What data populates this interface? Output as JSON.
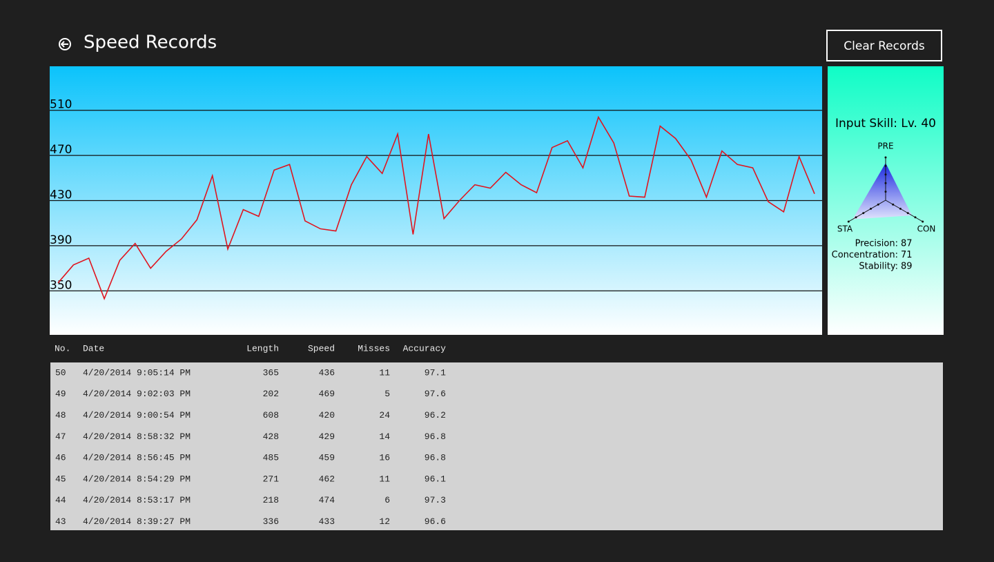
{
  "header": {
    "title": "Speed Records",
    "button": "Clear Records"
  },
  "chart_data": {
    "type": "line",
    "values": [
      357,
      373,
      379,
      343,
      377,
      392,
      370,
      385,
      396,
      413,
      452,
      387,
      422,
      416,
      457,
      462,
      412,
      405,
      403,
      444,
      469,
      454,
      489,
      400,
      489,
      414,
      430,
      444,
      441,
      455,
      444,
      437,
      477,
      483,
      459,
      504,
      481,
      434,
      433,
      496,
      485,
      466,
      433,
      474,
      462,
      459,
      429,
      420,
      469,
      436
    ],
    "color": "#e0141e",
    "ylim": [
      311,
      549
    ],
    "yticks": [
      350,
      390,
      430,
      470,
      510
    ],
    "grid": true
  },
  "skill": {
    "title": "Input Skill: Lv. 40",
    "axes": [
      "PRE",
      "STA",
      "CON"
    ],
    "stats": [
      {
        "label": "Precision:",
        "value": 87
      },
      {
        "label": "Concentration:",
        "value": 71
      },
      {
        "label": "Stability:",
        "value": 89
      }
    ]
  },
  "table": {
    "columns": [
      "No.",
      "Date",
      "Length",
      "Speed",
      "Misses",
      "Accuracy"
    ],
    "rows": [
      [
        50,
        "4/20/2014 9:05:14 PM",
        365,
        436,
        11,
        97.1
      ],
      [
        49,
        "4/20/2014 9:02:03 PM",
        202,
        469,
        5,
        97.6
      ],
      [
        48,
        "4/20/2014 9:00:54 PM",
        608,
        420,
        24,
        96.2
      ],
      [
        47,
        "4/20/2014 8:58:32 PM",
        428,
        429,
        14,
        96.8
      ],
      [
        46,
        "4/20/2014 8:56:45 PM",
        485,
        459,
        16,
        96.8
      ],
      [
        45,
        "4/20/2014 8:54:29 PM",
        271,
        462,
        11,
        96.1
      ],
      [
        44,
        "4/20/2014 8:53:17 PM",
        218,
        474,
        6,
        97.3
      ],
      [
        43,
        "4/20/2014 8:39:27 PM",
        336,
        433,
        12,
        96.6
      ]
    ]
  }
}
